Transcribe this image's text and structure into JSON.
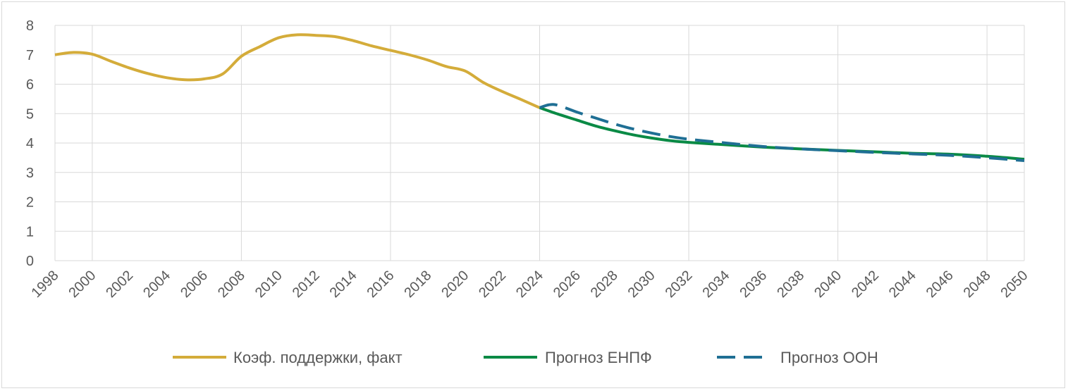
{
  "chart_data": {
    "type": "line",
    "title": "",
    "xlabel": "",
    "ylabel": "",
    "xlim": [
      1998,
      2050
    ],
    "ylim": [
      0,
      8
    ],
    "grid": true,
    "legend_position": "bottom",
    "x_ticks": [
      1998,
      2000,
      2002,
      2004,
      2006,
      2008,
      2010,
      2012,
      2014,
      2016,
      2018,
      2020,
      2022,
      2024,
      2026,
      2028,
      2030,
      2032,
      2034,
      2036,
      2038,
      2040,
      2042,
      2044,
      2046,
      2048,
      2050
    ],
    "y_ticks": [
      0,
      1,
      2,
      3,
      4,
      5,
      6,
      7,
      8
    ],
    "series": [
      {
        "name": "Коэф. поддержки, факт",
        "color": "#d4ac3a",
        "style": "solid",
        "x": [
          1998,
          1999,
          2000,
          2001,
          2002,
          2003,
          2004,
          2005,
          2006,
          2007,
          2008,
          2009,
          2010,
          2011,
          2012,
          2013,
          2014,
          2015,
          2016,
          2017,
          2018,
          2019,
          2020,
          2021,
          2022,
          2023,
          2024
        ],
        "y": [
          7.0,
          7.08,
          7.02,
          6.78,
          6.55,
          6.36,
          6.22,
          6.15,
          6.18,
          6.35,
          6.95,
          7.28,
          7.58,
          7.68,
          7.66,
          7.62,
          7.48,
          7.3,
          7.15,
          7.0,
          6.82,
          6.6,
          6.45,
          6.05,
          5.75,
          5.48,
          5.2
        ]
      },
      {
        "name": "Прогноз ЕНПФ",
        "color": "#0a8a45",
        "style": "solid",
        "x": [
          2024,
          2025,
          2026,
          2027,
          2028,
          2029,
          2030,
          2031,
          2032,
          2034,
          2036,
          2038,
          2040,
          2042,
          2044,
          2046,
          2048,
          2050
        ],
        "y": [
          5.2,
          4.98,
          4.78,
          4.58,
          4.42,
          4.28,
          4.17,
          4.08,
          4.02,
          3.94,
          3.86,
          3.8,
          3.75,
          3.7,
          3.65,
          3.62,
          3.55,
          3.45
        ]
      },
      {
        "name": "Прогноз ООН",
        "color": "#1f6f94",
        "style": "dashed",
        "x": [
          2024,
          2024.5,
          2025,
          2026,
          2027,
          2028,
          2029,
          2030,
          2031,
          2032,
          2034,
          2036,
          2038,
          2040,
          2042,
          2044,
          2046,
          2048,
          2050
        ],
        "y": [
          5.2,
          5.3,
          5.28,
          5.05,
          4.85,
          4.65,
          4.48,
          4.34,
          4.22,
          4.13,
          4.0,
          3.88,
          3.8,
          3.74,
          3.68,
          3.63,
          3.58,
          3.5,
          3.4
        ]
      }
    ]
  }
}
